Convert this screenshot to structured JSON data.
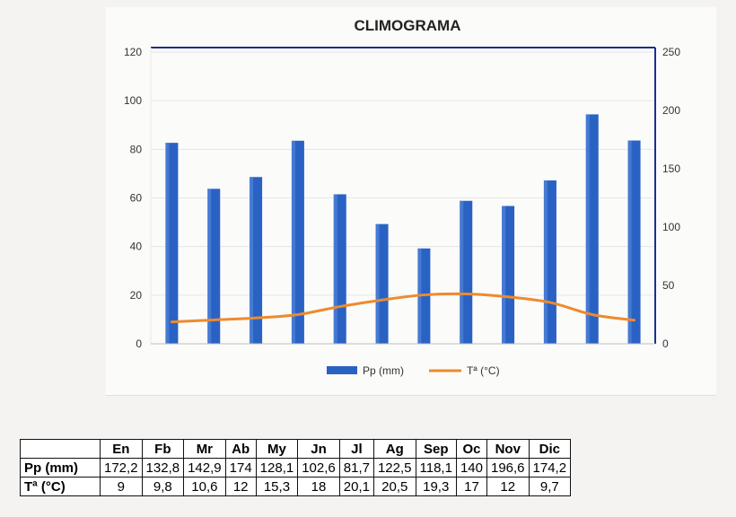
{
  "chart_data": {
    "type": "bar+line",
    "title": "CLIMOGRAMA",
    "categories": [
      "En",
      "Fb",
      "Mr",
      "Ab",
      "My",
      "Jn",
      "Jl",
      "Ag",
      "Sep",
      "Oc",
      "Nov",
      "Dic"
    ],
    "series": [
      {
        "name": "Pp (mm)",
        "type": "bar",
        "axis": "right",
        "color": "#2a62c4",
        "values": [
          172.2,
          132.8,
          142.9,
          174,
          128.1,
          102.6,
          81.7,
          122.5,
          118.1,
          140,
          196.6,
          174.2
        ]
      },
      {
        "name": "Tª (°C)",
        "type": "line",
        "axis": "left",
        "color": "#ee8a2e",
        "values": [
          9,
          9.8,
          10.6,
          12,
          15.3,
          18,
          20.1,
          20.5,
          19.3,
          17,
          12,
          9.7
        ]
      }
    ],
    "left_axis": {
      "ylim": [
        0,
        120
      ],
      "ticks": [
        0,
        20,
        40,
        60,
        80,
        100,
        120
      ]
    },
    "right_axis": {
      "ylim": [
        0,
        250
      ],
      "ticks": [
        0,
        50,
        100,
        150,
        200,
        250
      ]
    },
    "legend": "bottom"
  },
  "table": {
    "header": [
      "",
      "En",
      "Fb",
      "Mr",
      "Ab",
      "My",
      "Jn",
      "Jl",
      "Ag",
      "Sep",
      "Oc",
      "Nov",
      "Dic"
    ],
    "rows": [
      {
        "label": "Pp (mm)",
        "values": [
          "172,2",
          "132,8",
          "142,9",
          "174",
          "128,1",
          "102,6",
          "81,7",
          "122,5",
          "118,1",
          "140",
          "196,6",
          "174,2"
        ]
      },
      {
        "label": "Tª (°C)",
        "values": [
          "9",
          "9,8",
          "10,6",
          "12",
          "15,3",
          "18",
          "20,1",
          "20,5",
          "19,3",
          "17",
          "12",
          "9,7"
        ]
      }
    ]
  }
}
